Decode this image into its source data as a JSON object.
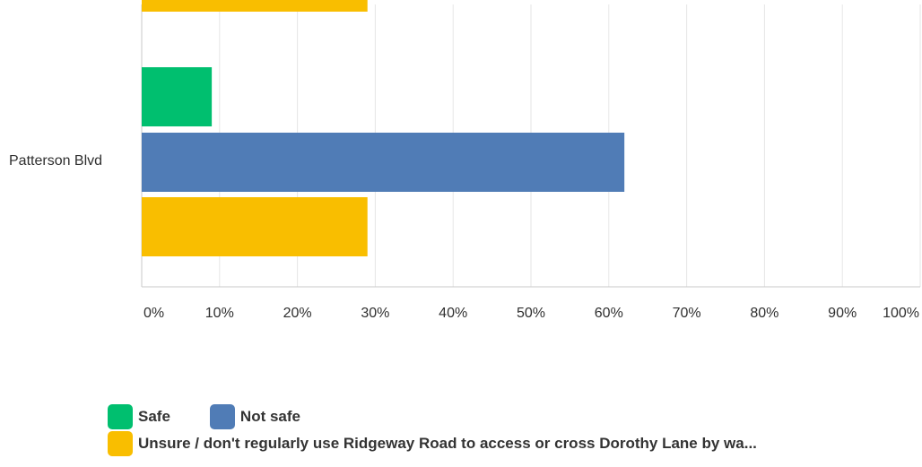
{
  "chart_data": {
    "type": "bar",
    "orientation": "horizontal",
    "categories": [
      "Patterson Blvd"
    ],
    "series": [
      {
        "name": "Safe",
        "color": "#00BF6F",
        "values": [
          9
        ]
      },
      {
        "name": "Not safe",
        "color": "#507CB6",
        "values": [
          62
        ]
      },
      {
        "name": "Unsure / don't regularly use Ridgeway Road to access or cross Dorothy Lane by wa...",
        "color": "#F9BE00",
        "values": [
          29
        ]
      }
    ],
    "partial_previous_category": {
      "series": "Unsure / don't regularly use Ridgeway Road to access or cross Dorothy Lane by wa...",
      "value": 29
    },
    "x_axis": {
      "min": 0,
      "max": 100,
      "ticks": [
        "0%",
        "10%",
        "20%",
        "30%",
        "40%",
        "50%",
        "60%",
        "70%",
        "80%",
        "90%",
        "100%"
      ]
    },
    "grid": true,
    "legend_position": "bottom"
  }
}
